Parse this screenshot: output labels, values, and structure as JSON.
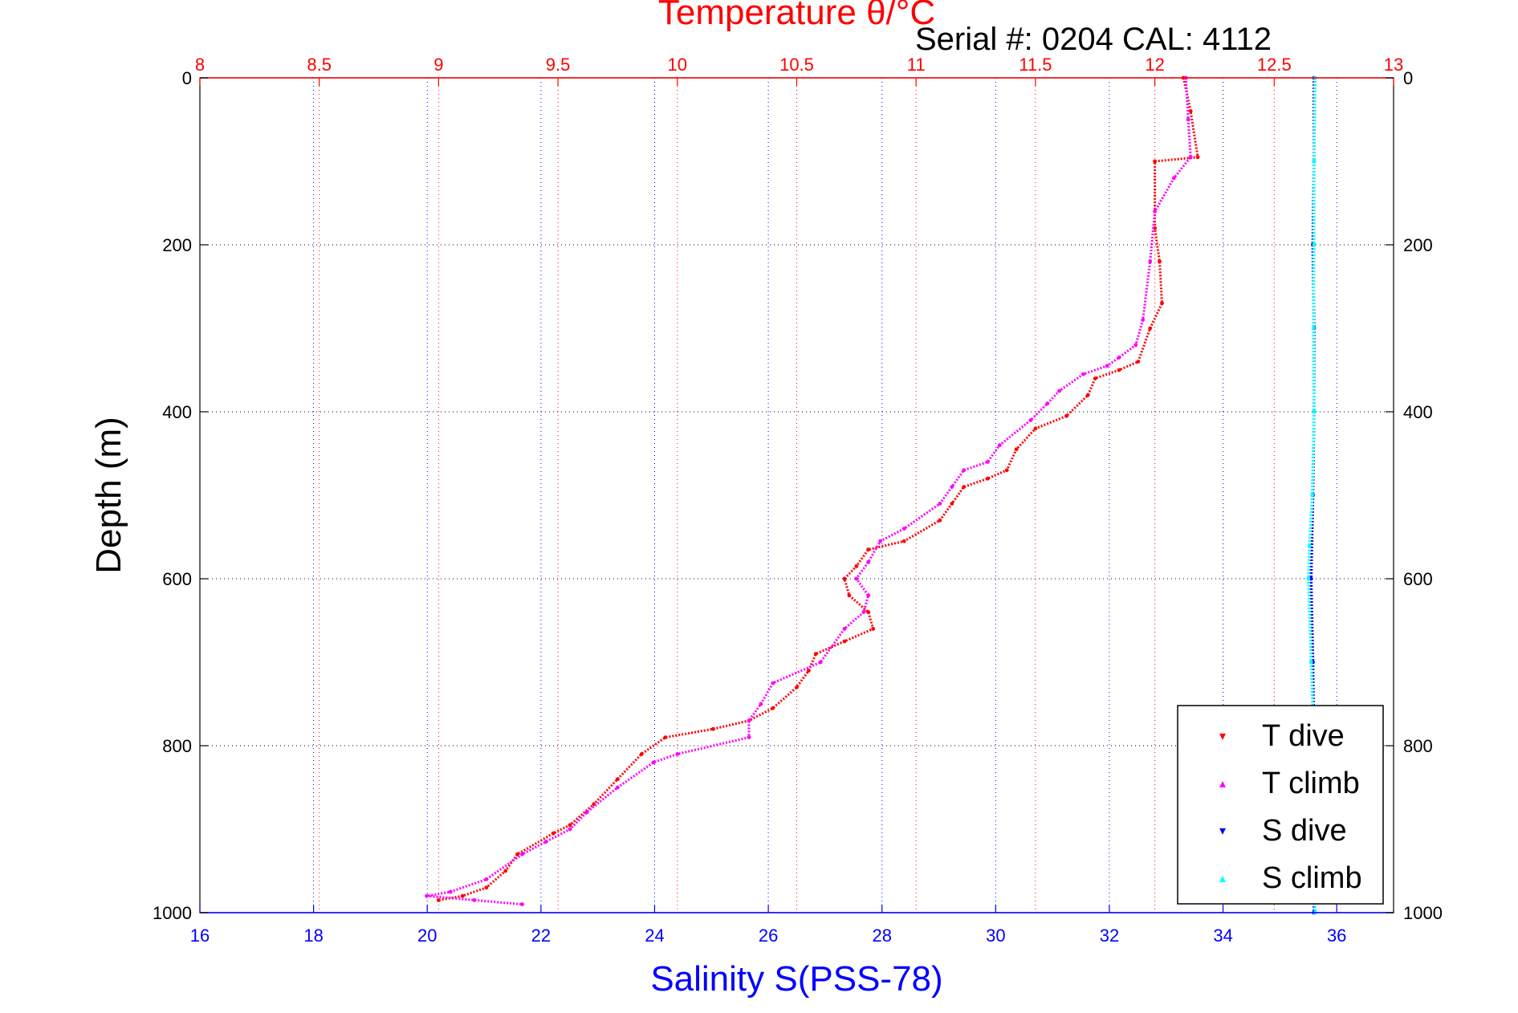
{
  "colors": {
    "temperature_axis": "#ff0000",
    "salinity_axis": "#0000ff",
    "t_dive": "#ff0000",
    "t_climb": "#ff00ff",
    "s_dive": "#0000ff",
    "s_climb": "#00ffff",
    "grid": "#000000"
  },
  "header": {
    "serial": "Serial #: 0204  CAL: 4112"
  },
  "chart_data": {
    "type": "scatter",
    "title": "Temperature θ/°C",
    "xlabel": "Salinity S(PSS-78)",
    "ylabel": "Depth (m)",
    "y_reversed": true,
    "ylim": [
      0,
      1000
    ],
    "y_ticks": [
      "0",
      "200",
      "400",
      "600",
      "800",
      "1000"
    ],
    "x_bottom": {
      "lim": [
        16,
        37
      ],
      "ticks": [
        "16",
        "18",
        "20",
        "22",
        "24",
        "26",
        "28",
        "30",
        "32",
        "34",
        "36"
      ]
    },
    "x_top": {
      "lim": [
        8,
        13
      ],
      "ticks": [
        "8",
        "8.5",
        "9",
        "9.5",
        "10",
        "10.5",
        "11",
        "11.5",
        "12",
        "12.5",
        "13"
      ]
    },
    "grid": true,
    "legend_position": "bottom-right",
    "series": [
      {
        "name": "T dive",
        "axis": "temperature",
        "marker": "▾",
        "color_key": "t_dive",
        "points": [
          [
            12.12,
            0
          ],
          [
            12.15,
            40
          ],
          [
            12.18,
            95
          ],
          [
            12.0,
            100
          ],
          [
            12.0,
            180
          ],
          [
            12.02,
            220
          ],
          [
            12.03,
            270
          ],
          [
            11.98,
            300
          ],
          [
            11.93,
            340
          ],
          [
            11.85,
            350
          ],
          [
            11.75,
            360
          ],
          [
            11.72,
            380
          ],
          [
            11.63,
            405
          ],
          [
            11.5,
            420
          ],
          [
            11.42,
            445
          ],
          [
            11.38,
            470
          ],
          [
            11.3,
            480
          ],
          [
            11.2,
            490
          ],
          [
            11.15,
            510
          ],
          [
            11.1,
            530
          ],
          [
            10.95,
            555
          ],
          [
            10.8,
            565
          ],
          [
            10.75,
            585
          ],
          [
            10.7,
            600
          ],
          [
            10.72,
            620
          ],
          [
            10.8,
            640
          ],
          [
            10.82,
            660
          ],
          [
            10.7,
            675
          ],
          [
            10.58,
            690
          ],
          [
            10.55,
            710
          ],
          [
            10.5,
            730
          ],
          [
            10.4,
            755
          ],
          [
            10.3,
            770
          ],
          [
            10.15,
            780
          ],
          [
            9.95,
            790
          ],
          [
            9.85,
            810
          ],
          [
            9.75,
            840
          ],
          [
            9.65,
            870
          ],
          [
            9.55,
            895
          ],
          [
            9.48,
            905
          ],
          [
            9.33,
            930
          ],
          [
            9.28,
            950
          ],
          [
            9.2,
            970
          ],
          [
            9.1,
            980
          ],
          [
            9.0,
            985
          ]
        ]
      },
      {
        "name": "T climb",
        "axis": "temperature",
        "marker": "▴",
        "color_key": "t_climb",
        "points": [
          [
            12.13,
            0
          ],
          [
            12.14,
            50
          ],
          [
            12.15,
            95
          ],
          [
            12.08,
            120
          ],
          [
            12.0,
            160
          ],
          [
            11.98,
            220
          ],
          [
            11.95,
            290
          ],
          [
            11.92,
            320
          ],
          [
            11.85,
            335
          ],
          [
            11.8,
            345
          ],
          [
            11.7,
            355
          ],
          [
            11.6,
            375
          ],
          [
            11.55,
            390
          ],
          [
            11.48,
            410
          ],
          [
            11.35,
            440
          ],
          [
            11.3,
            460
          ],
          [
            11.2,
            470
          ],
          [
            11.15,
            490
          ],
          [
            11.1,
            510
          ],
          [
            10.95,
            540
          ],
          [
            10.85,
            555
          ],
          [
            10.8,
            580
          ],
          [
            10.75,
            600
          ],
          [
            10.8,
            620
          ],
          [
            10.78,
            640
          ],
          [
            10.7,
            660
          ],
          [
            10.6,
            700
          ],
          [
            10.4,
            725
          ],
          [
            10.35,
            750
          ],
          [
            10.3,
            770
          ],
          [
            10.3,
            790
          ],
          [
            10.0,
            810
          ],
          [
            9.9,
            820
          ],
          [
            9.75,
            850
          ],
          [
            9.62,
            880
          ],
          [
            9.55,
            900
          ],
          [
            9.45,
            915
          ],
          [
            9.35,
            930
          ],
          [
            9.2,
            960
          ],
          [
            9.05,
            975
          ],
          [
            8.95,
            980
          ],
          [
            9.15,
            985
          ],
          [
            9.35,
            990
          ]
        ]
      },
      {
        "name": "S dive",
        "axis": "salinity",
        "marker": "▾",
        "color_key": "s_dive",
        "points": [
          [
            35.6,
            0
          ],
          [
            35.6,
            100
          ],
          [
            35.58,
            200
          ],
          [
            35.6,
            300
          ],
          [
            35.6,
            400
          ],
          [
            35.58,
            500
          ],
          [
            35.55,
            600
          ],
          [
            35.58,
            700
          ],
          [
            35.6,
            800
          ],
          [
            35.6,
            900
          ],
          [
            35.6,
            1000
          ]
        ]
      },
      {
        "name": "S climb",
        "axis": "salinity",
        "marker": "▴",
        "color_key": "s_climb",
        "points": [
          [
            35.62,
            0
          ],
          [
            35.6,
            100
          ],
          [
            35.6,
            200
          ],
          [
            35.59,
            300
          ],
          [
            35.6,
            400
          ],
          [
            35.57,
            500
          ],
          [
            35.52,
            560
          ],
          [
            35.5,
            600
          ],
          [
            35.55,
            700
          ],
          [
            35.6,
            800
          ],
          [
            35.6,
            900
          ],
          [
            35.62,
            1000
          ]
        ]
      }
    ]
  }
}
